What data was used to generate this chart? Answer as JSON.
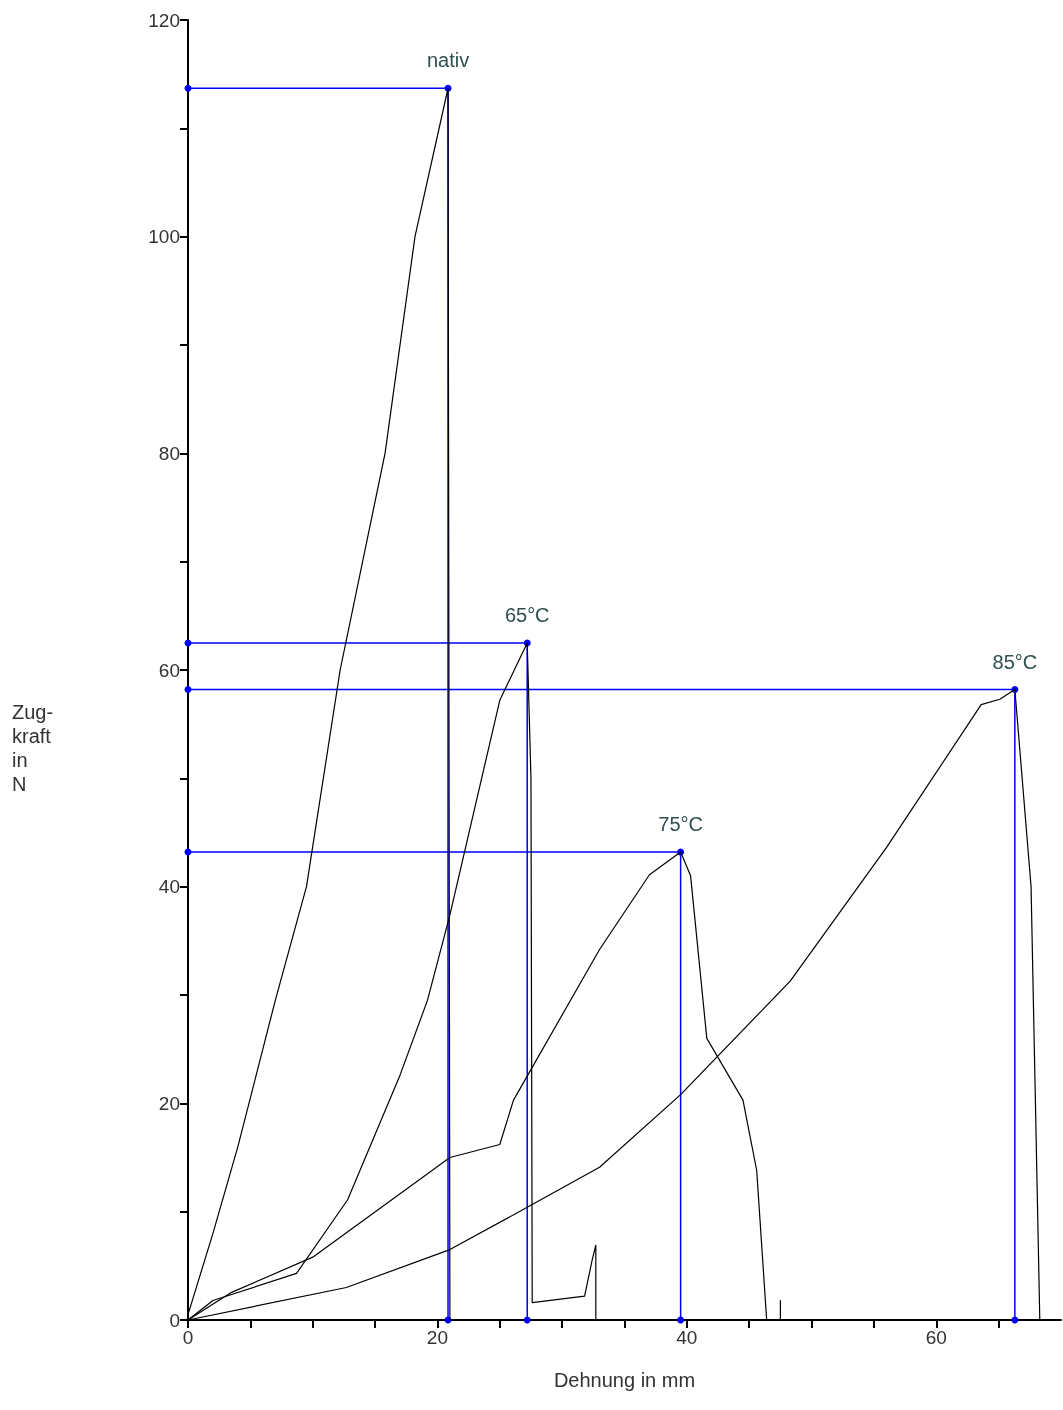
{
  "chart_data": {
    "type": "line",
    "xlabel": "Dehnung in mm",
    "ylabel": "Zug-\nkraft\nin\nN",
    "xlim": [
      0,
      70
    ],
    "ylim": [
      0,
      120
    ],
    "xticks": [
      0,
      {
        "value": 5,
        "label": null
      },
      {
        "value": 10,
        "label": null
      },
      {
        "value": 15,
        "label": null
      },
      20,
      {
        "value": 25,
        "label": null
      },
      {
        "value": 30,
        "label": null
      },
      {
        "value": 35,
        "label": null
      },
      40,
      {
        "value": 45,
        "label": null
      },
      {
        "value": 50,
        "label": null
      },
      {
        "value": 55,
        "label": null
      },
      60,
      {
        "value": 65,
        "label": null
      }
    ],
    "yticks": [
      0,
      {
        "value": 10,
        "label": null
      },
      20,
      {
        "value": 30,
        "label": null
      },
      40,
      {
        "value": 50,
        "label": null
      },
      60,
      {
        "value": 70,
        "label": null
      },
      80,
      {
        "value": 90,
        "label": null
      },
      100,
      {
        "value": 110,
        "label": null
      },
      120
    ],
    "grid": false,
    "legend": false,
    "line_style": "solid",
    "series": [
      {
        "name": "nativ",
        "color": "#000000",
        "marker": "none",
        "x": [
          0,
          2,
          4,
          7,
          9.5,
          12.2,
          14,
          15.8,
          18.2,
          20.85,
          21
        ],
        "values": [
          0.5,
          8,
          16,
          29.5,
          40,
          60,
          70,
          80,
          100,
          113.7,
          0
        ]
      },
      {
        "name": "65°C",
        "color": "#000000",
        "marker": "none",
        "x": [
          0,
          2,
          8.7,
          12.8,
          17,
          19.2,
          21,
          25,
          27.2,
          27.5,
          27.6,
          31.8,
          32.4,
          32.7,
          32.7
        ],
        "values": [
          0,
          1.8,
          4.3,
          11.1,
          22.6,
          29.5,
          37.4,
          57.2,
          62.5,
          50,
          1.6,
          2.2,
          5.5,
          6.9,
          0
        ]
      },
      {
        "name": "75°C",
        "color": "#000000",
        "marker": "none",
        "x": [
          0,
          3.4,
          10,
          21,
          25,
          26.1,
          33,
          37,
          39.5,
          40.3,
          41.6,
          44.5,
          45.6,
          46.4,
          47.5,
          47.5,
          47.5
        ],
        "values": [
          0,
          2.5,
          5.8,
          15,
          16.2,
          20.3,
          34.2,
          41.1,
          43.2,
          41,
          26,
          20.3,
          13.8,
          0,
          0,
          1.8,
          0
        ]
      },
      {
        "name": "85°C",
        "color": "#000000",
        "marker": "none",
        "x": [
          0,
          12.7,
          21,
          27.2,
          33,
          39.5,
          48.3,
          56,
          63.6,
          65.1,
          66.3,
          67.6,
          68.3
        ],
        "values": [
          0,
          3,
          6.5,
          10.4,
          14.1,
          20.8,
          31.3,
          43.6,
          56.8,
          57.3,
          58.2,
          40,
          0
        ]
      },
      {
        "color": "#0000ff",
        "marker": "circle",
        "x": [
          0,
          20.85,
          20.85
        ],
        "values": [
          113.7,
          113.7,
          0
        ]
      },
      {
        "color": "#0000ff",
        "marker": "circle",
        "x": [
          0,
          27.2,
          27.2
        ],
        "values": [
          62.5,
          62.5,
          0
        ]
      },
      {
        "color": "#0000ff",
        "marker": "circle",
        "x": [
          0,
          39.5,
          39.5
        ],
        "values": [
          43.2,
          43.2,
          0
        ]
      },
      {
        "color": "#0000ff",
        "marker": "circle",
        "x": [
          0,
          66.3,
          66.3
        ],
        "values": [
          58.2,
          58.2,
          0
        ]
      }
    ]
  }
}
